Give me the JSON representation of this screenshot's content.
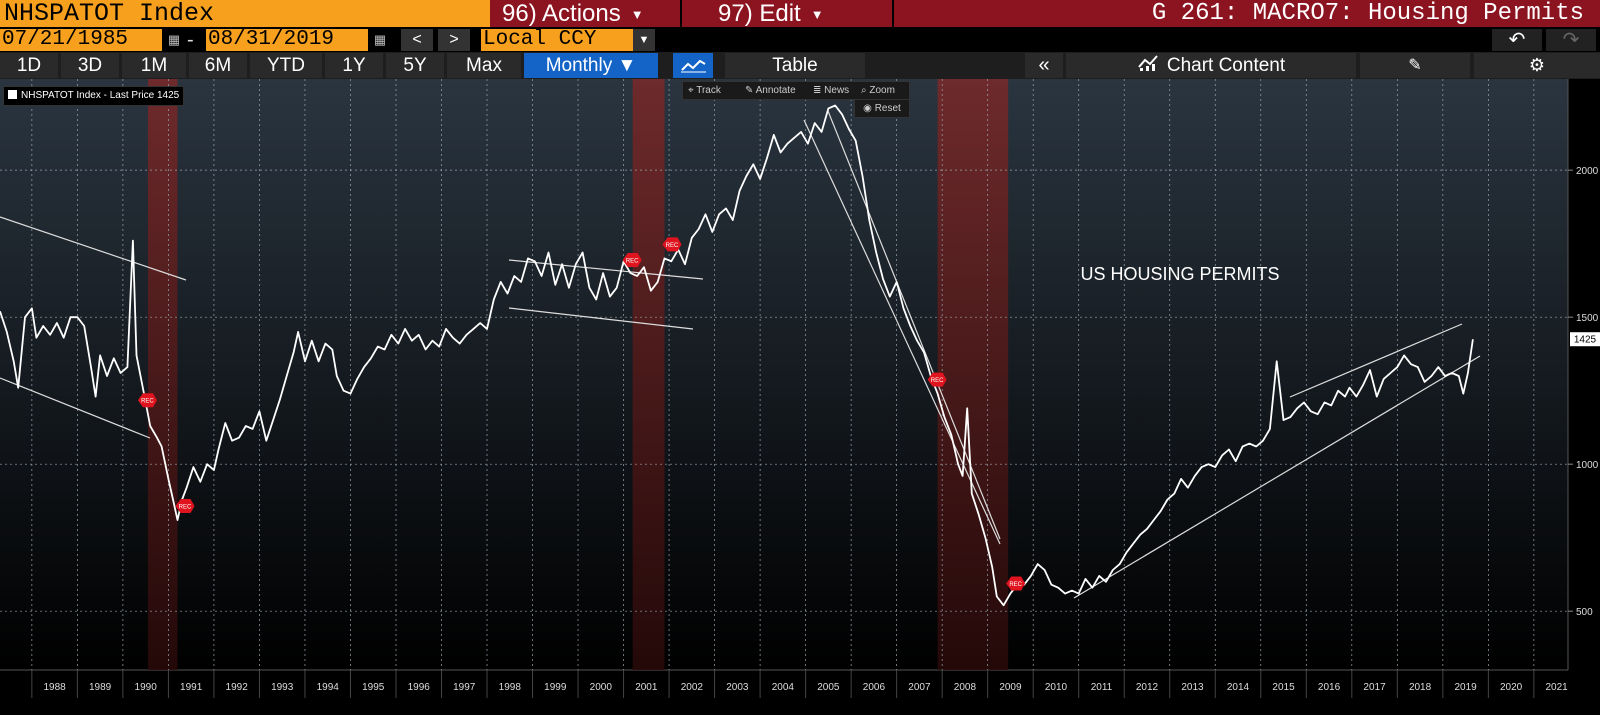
{
  "header": {
    "security": "NHSPATOT Index",
    "actions_label": "96) Actions",
    "edit_label": "97) Edit",
    "title": "G 261: MACRO7: Housing Permits"
  },
  "dates": {
    "start": "07/21/1985",
    "separator": "-",
    "end": "08/31/2019"
  },
  "nav": {
    "prev": "<",
    "next": ">"
  },
  "currency": "Local CCY",
  "periods": [
    "1D",
    "3D",
    "1M",
    "6M",
    "YTD",
    "1Y",
    "5Y",
    "Max"
  ],
  "frequency": "Monthly ▼",
  "table_label": "Table",
  "collapse_label": "«",
  "chart_content_label": "Chart Content",
  "tools": {
    "track": "Track",
    "annotate": "Annotate",
    "news": "News",
    "zoom": "Zoom",
    "reset": "Reset"
  },
  "legend": {
    "text": "NHSPATOT Index - Last Price 1425"
  },
  "annotation": "US HOUSING PERMITS",
  "recession_label": "REC",
  "last_price_tag": "1425",
  "colors": {
    "orange": "#f7a01e",
    "menu_red": "#8c1420",
    "active_blue": "#1464c8",
    "line": "#ffffff",
    "recession": "#a02828"
  },
  "chart_data": {
    "type": "line",
    "title": "",
    "xlabel": "",
    "ylabel": "",
    "x_ticks": [
      "1988",
      "1989",
      "1990",
      "1991",
      "1992",
      "1993",
      "1994",
      "1995",
      "1996",
      "1997",
      "1998",
      "1999",
      "2000",
      "2001",
      "2002",
      "2003",
      "2004",
      "2005",
      "2006",
      "2007",
      "2008",
      "2009",
      "2010",
      "2011",
      "2012",
      "2013",
      "2014",
      "2015",
      "2016",
      "2017",
      "2018",
      "2019",
      "2020",
      "2021"
    ],
    "y_ticks": [
      500,
      1000,
      1500,
      2000
    ],
    "ylim": [
      300,
      2310
    ],
    "xlim": [
      1987.3,
      2021.75
    ],
    "grid": true,
    "recessions": [
      [
        1990.55,
        1991.2
      ],
      [
        2001.2,
        2001.9
      ],
      [
        2007.9,
        2009.45
      ]
    ],
    "series": [
      {
        "values": [
          [
            1987.3,
            1520
          ],
          [
            1987.45,
            1450
          ],
          [
            1987.6,
            1350
          ],
          [
            1987.7,
            1260
          ],
          [
            1987.85,
            1500
          ],
          [
            1988.0,
            1530
          ],
          [
            1988.1,
            1430
          ],
          [
            1988.25,
            1470
          ],
          [
            1988.4,
            1440
          ],
          [
            1988.55,
            1480
          ],
          [
            1988.7,
            1430
          ],
          [
            1988.85,
            1500
          ],
          [
            1989.0,
            1500
          ],
          [
            1989.15,
            1470
          ],
          [
            1989.3,
            1330
          ],
          [
            1989.4,
            1230
          ],
          [
            1989.5,
            1370
          ],
          [
            1989.65,
            1300
          ],
          [
            1989.8,
            1360
          ],
          [
            1989.95,
            1310
          ],
          [
            1990.1,
            1330
          ],
          [
            1990.22,
            1760
          ],
          [
            1990.3,
            1370
          ],
          [
            1990.45,
            1250
          ],
          [
            1990.6,
            1130
          ],
          [
            1990.75,
            1090
          ],
          [
            1990.85,
            1060
          ],
          [
            1991.0,
            950
          ],
          [
            1991.1,
            880
          ],
          [
            1991.2,
            810
          ],
          [
            1991.3,
            880
          ],
          [
            1991.4,
            920
          ],
          [
            1991.55,
            990
          ],
          [
            1991.7,
            940
          ],
          [
            1991.85,
            1000
          ],
          [
            1992.0,
            980
          ],
          [
            1992.1,
            1050
          ],
          [
            1992.25,
            1140
          ],
          [
            1992.4,
            1080
          ],
          [
            1992.55,
            1090
          ],
          [
            1992.7,
            1130
          ],
          [
            1992.85,
            1120
          ],
          [
            1993.0,
            1180
          ],
          [
            1993.15,
            1080
          ],
          [
            1993.3,
            1150
          ],
          [
            1993.45,
            1220
          ],
          [
            1993.6,
            1300
          ],
          [
            1993.75,
            1380
          ],
          [
            1993.85,
            1450
          ],
          [
            1994.0,
            1350
          ],
          [
            1994.15,
            1420
          ],
          [
            1994.3,
            1350
          ],
          [
            1994.45,
            1410
          ],
          [
            1994.6,
            1390
          ],
          [
            1994.7,
            1300
          ],
          [
            1994.85,
            1250
          ],
          [
            1995.0,
            1240
          ],
          [
            1995.15,
            1290
          ],
          [
            1995.3,
            1330
          ],
          [
            1995.45,
            1360
          ],
          [
            1995.6,
            1400
          ],
          [
            1995.75,
            1390
          ],
          [
            1995.9,
            1440
          ],
          [
            1996.05,
            1410
          ],
          [
            1996.2,
            1460
          ],
          [
            1996.35,
            1420
          ],
          [
            1996.5,
            1440
          ],
          [
            1996.65,
            1390
          ],
          [
            1996.8,
            1420
          ],
          [
            1996.95,
            1400
          ],
          [
            1997.1,
            1460
          ],
          [
            1997.25,
            1430
          ],
          [
            1997.4,
            1410
          ],
          [
            1997.55,
            1440
          ],
          [
            1997.7,
            1460
          ],
          [
            1997.85,
            1480
          ],
          [
            1998.0,
            1460
          ],
          [
            1998.15,
            1560
          ],
          [
            1998.3,
            1620
          ],
          [
            1998.45,
            1580
          ],
          [
            1998.6,
            1640
          ],
          [
            1998.75,
            1620
          ],
          [
            1998.9,
            1700
          ],
          [
            1999.05,
            1690
          ],
          [
            1999.2,
            1640
          ],
          [
            1999.35,
            1720
          ],
          [
            1999.5,
            1610
          ],
          [
            1999.65,
            1680
          ],
          [
            1999.8,
            1600
          ],
          [
            1999.95,
            1680
          ],
          [
            2000.1,
            1720
          ],
          [
            2000.25,
            1600
          ],
          [
            2000.4,
            1560
          ],
          [
            2000.55,
            1650
          ],
          [
            2000.7,
            1570
          ],
          [
            2000.85,
            1600
          ],
          [
            2001.0,
            1690
          ],
          [
            2001.15,
            1650
          ],
          [
            2001.3,
            1640
          ],
          [
            2001.45,
            1670
          ],
          [
            2001.6,
            1590
          ],
          [
            2001.75,
            1620
          ],
          [
            2001.9,
            1700
          ],
          [
            2002.05,
            1690
          ],
          [
            2002.2,
            1730
          ],
          [
            2002.35,
            1680
          ],
          [
            2002.5,
            1770
          ],
          [
            2002.65,
            1800
          ],
          [
            2002.8,
            1850
          ],
          [
            2002.95,
            1790
          ],
          [
            2003.1,
            1850
          ],
          [
            2003.25,
            1870
          ],
          [
            2003.4,
            1830
          ],
          [
            2003.55,
            1930
          ],
          [
            2003.7,
            1980
          ],
          [
            2003.85,
            2020
          ],
          [
            2004.0,
            1970
          ],
          [
            2004.15,
            2040
          ],
          [
            2004.3,
            2120
          ],
          [
            2004.45,
            2060
          ],
          [
            2004.6,
            2090
          ],
          [
            2004.75,
            2110
          ],
          [
            2004.9,
            2130
          ],
          [
            2005.05,
            2090
          ],
          [
            2005.2,
            2160
          ],
          [
            2005.35,
            2130
          ],
          [
            2005.5,
            2210
          ],
          [
            2005.65,
            2220
          ],
          [
            2005.8,
            2190
          ],
          [
            2005.95,
            2140
          ],
          [
            2006.1,
            2100
          ],
          [
            2006.25,
            1980
          ],
          [
            2006.4,
            1830
          ],
          [
            2006.55,
            1720
          ],
          [
            2006.7,
            1630
          ],
          [
            2006.85,
            1570
          ],
          [
            2007.0,
            1620
          ],
          [
            2007.15,
            1530
          ],
          [
            2007.3,
            1470
          ],
          [
            2007.45,
            1420
          ],
          [
            2007.6,
            1380
          ],
          [
            2007.75,
            1300
          ],
          [
            2007.9,
            1240
          ],
          [
            2008.05,
            1160
          ],
          [
            2008.2,
            1100
          ],
          [
            2008.35,
            1000
          ],
          [
            2008.45,
            960
          ],
          [
            2008.55,
            1190
          ],
          [
            2008.65,
            900
          ],
          [
            2008.8,
            830
          ],
          [
            2008.95,
            750
          ],
          [
            2009.1,
            650
          ],
          [
            2009.2,
            550
          ],
          [
            2009.35,
            520
          ],
          [
            2009.5,
            560
          ],
          [
            2009.65,
            590
          ],
          [
            2009.8,
            590
          ],
          [
            2009.95,
            620
          ],
          [
            2010.1,
            660
          ],
          [
            2010.25,
            640
          ],
          [
            2010.4,
            590
          ],
          [
            2010.55,
            580
          ],
          [
            2010.7,
            560
          ],
          [
            2010.85,
            570
          ],
          [
            2011.0,
            560
          ],
          [
            2011.15,
            610
          ],
          [
            2011.3,
            580
          ],
          [
            2011.45,
            620
          ],
          [
            2011.6,
            600
          ],
          [
            2011.75,
            640
          ],
          [
            2011.9,
            660
          ],
          [
            2012.05,
            700
          ],
          [
            2012.2,
            730
          ],
          [
            2012.35,
            760
          ],
          [
            2012.5,
            780
          ],
          [
            2012.65,
            810
          ],
          [
            2012.8,
            840
          ],
          [
            2012.95,
            880
          ],
          [
            2013.1,
            900
          ],
          [
            2013.25,
            950
          ],
          [
            2013.4,
            920
          ],
          [
            2013.55,
            960
          ],
          [
            2013.7,
            990
          ],
          [
            2013.85,
            1000
          ],
          [
            2014.0,
            990
          ],
          [
            2014.15,
            1030
          ],
          [
            2014.3,
            1050
          ],
          [
            2014.45,
            1010
          ],
          [
            2014.6,
            1060
          ],
          [
            2014.75,
            1070
          ],
          [
            2014.9,
            1060
          ],
          [
            2015.05,
            1080
          ],
          [
            2015.2,
            1120
          ],
          [
            2015.35,
            1350
          ],
          [
            2015.5,
            1150
          ],
          [
            2015.65,
            1160
          ],
          [
            2015.8,
            1190
          ],
          [
            2015.95,
            1210
          ],
          [
            2016.1,
            1180
          ],
          [
            2016.25,
            1170
          ],
          [
            2016.4,
            1210
          ],
          [
            2016.55,
            1200
          ],
          [
            2016.7,
            1250
          ],
          [
            2016.85,
            1230
          ],
          [
            2016.95,
            1260
          ],
          [
            2017.1,
            1230
          ],
          [
            2017.25,
            1270
          ],
          [
            2017.4,
            1320
          ],
          [
            2017.55,
            1230
          ],
          [
            2017.7,
            1290
          ],
          [
            2017.85,
            1310
          ],
          [
            2018.0,
            1330
          ],
          [
            2018.15,
            1370
          ],
          [
            2018.3,
            1340
          ],
          [
            2018.45,
            1330
          ],
          [
            2018.6,
            1280
          ],
          [
            2018.75,
            1300
          ],
          [
            2018.9,
            1330
          ],
          [
            2019.05,
            1300
          ],
          [
            2019.2,
            1310
          ],
          [
            2019.35,
            1300
          ],
          [
            2019.45,
            1240
          ],
          [
            2019.55,
            1310
          ],
          [
            2019.66,
            1425
          ]
        ]
      }
    ]
  }
}
